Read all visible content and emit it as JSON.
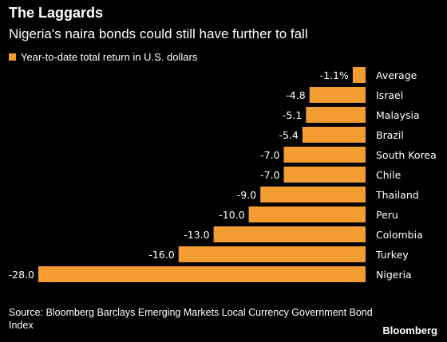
{
  "title": "The Laggards",
  "subtitle": "Nigeria's naira bonds could still have further to fall",
  "legend": {
    "label": "Year-to-date total return in U.S. dollars"
  },
  "source": "Source: Bloomberg Barclays Emerging Markets Local Currency Government Bond Index",
  "brand": "Bloomberg",
  "colors": {
    "bar": "#f39c32",
    "background": "#000000",
    "text": "#ffffff"
  },
  "chart_data": {
    "type": "bar",
    "orientation": "horizontal",
    "categories": [
      "Average",
      "Israel",
      "Malaysia",
      "Brazil",
      "South Korea",
      "Chile",
      "Thailand",
      "Peru",
      "Colombia",
      "Turkey",
      "Nigeria"
    ],
    "values": [
      -1.1,
      -4.8,
      -5.1,
      -5.4,
      -7.0,
      -7.0,
      -9.0,
      -10.0,
      -13.0,
      -16.0,
      -28.0
    ],
    "value_labels": [
      "-1.1%",
      "-4.8",
      "-5.1",
      "-5.4",
      "-7.0",
      "-7.0",
      "-9.0",
      "-10.0",
      "-13.0",
      "-16.0",
      "-28.0"
    ],
    "series": [
      {
        "name": "Year-to-date total return in U.S. dollars",
        "values": [
          -1.1,
          -4.8,
          -5.1,
          -5.4,
          -7.0,
          -7.0,
          -9.0,
          -10.0,
          -13.0,
          -16.0,
          -28.0
        ]
      }
    ],
    "xlim": [
      -28,
      0
    ],
    "grid": false,
    "legend_position": "top-left"
  }
}
